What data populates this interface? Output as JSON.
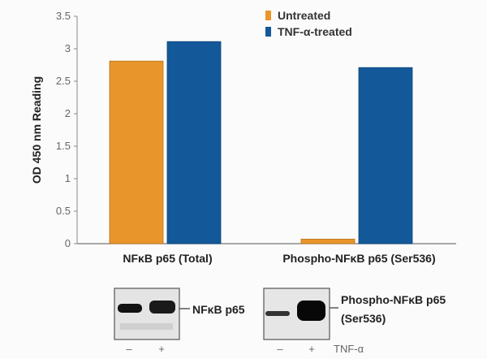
{
  "chart_data": {
    "type": "bar",
    "categories": [
      "NFκB p65 (Total)",
      "Phospho-NFκB p65 (Ser536)"
    ],
    "series": [
      {
        "name": "Untreated",
        "color": "#e8952a",
        "values": [
          2.81,
          0.07
        ]
      },
      {
        "name": "TNF-α-treated",
        "color": "#13599a",
        "values": [
          3.11,
          2.71
        ]
      }
    ],
    "ylabel": "OD 450 nm Reading",
    "ylim": [
      0,
      3.5
    ],
    "yticks": [
      "0",
      "0.5",
      "1",
      "1.5",
      "2",
      "2.5",
      "3",
      "3.5"
    ],
    "grid": false,
    "legend": "top-right"
  },
  "blots": [
    {
      "label": "NFκB p65"
    },
    {
      "label_line1": "Phospho-NFκB p65",
      "label_line2": "(Ser536)"
    }
  ],
  "lanes": {
    "minus": "–",
    "plus": "+",
    "treatment": "TNF-α"
  }
}
